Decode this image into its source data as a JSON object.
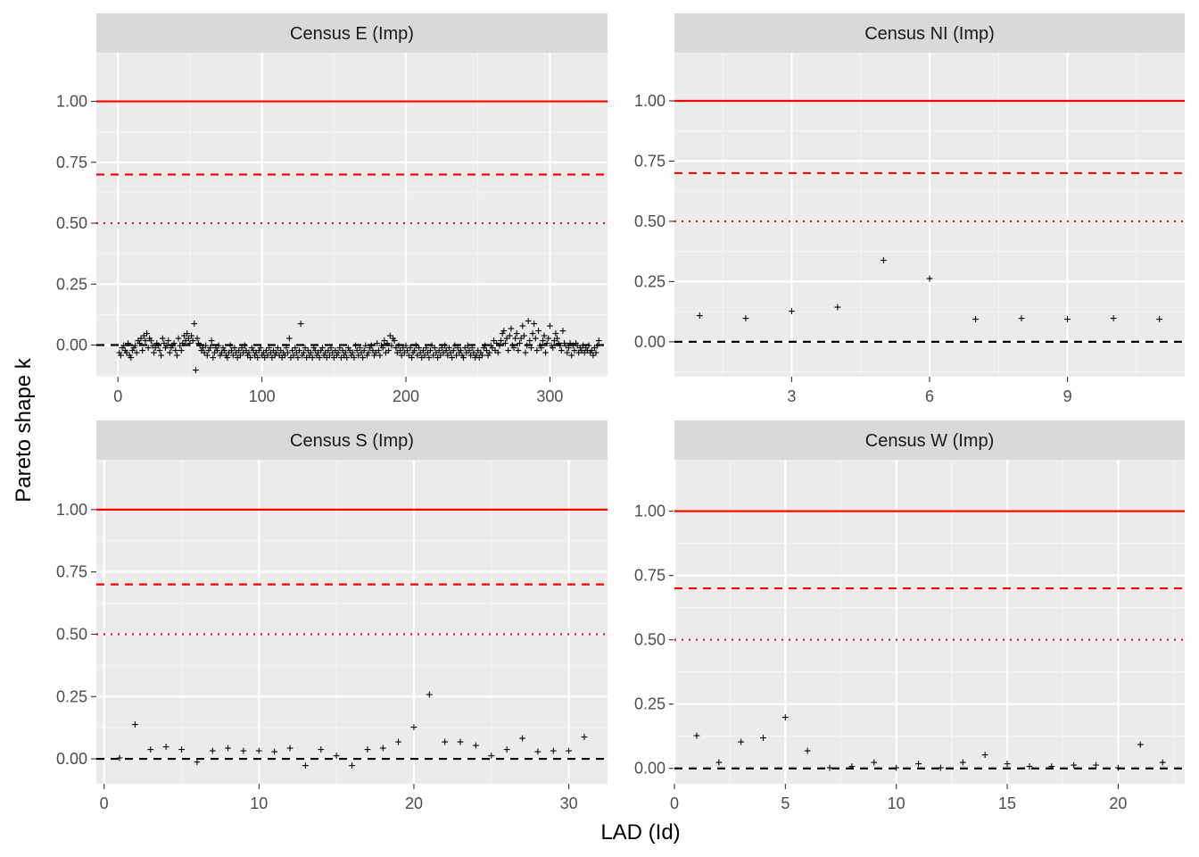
{
  "chart_data": {
    "type": "scatter",
    "xlabel": "LAD (Id)",
    "ylabel": "Pareto shape k",
    "reference_lines": [
      {
        "y": 1.0,
        "color": "#ff0000",
        "style": "solid"
      },
      {
        "y": 0.7,
        "color": "#ff0000",
        "style": "dashed"
      },
      {
        "y": 0.5,
        "color": "#ff0000",
        "style": "dotted"
      },
      {
        "y": 0.0,
        "color": "#000000",
        "style": "dashed"
      }
    ],
    "marker": "+",
    "panels": [
      {
        "title": "Census E (Imp)",
        "xlim": [
          -15,
          340
        ],
        "ylim": [
          -0.13,
          1.2
        ],
        "xticks": [
          0,
          100,
          200,
          300
        ],
        "xtick_labels": [
          "0",
          "100",
          "200",
          "300"
        ],
        "yticks": [
          0.0,
          0.25,
          0.5,
          0.75,
          1.0
        ],
        "ytick_labels": [
          "0.00",
          "0.25",
          "0.50",
          "0.75",
          "1.00"
        ],
        "y": [
          -0.03,
          -0.04,
          -0.01,
          0.0,
          -0.02,
          -0.03,
          0.01,
          -0.04,
          -0.05,
          -0.02,
          -0.01,
          0.0,
          -0.03,
          0.02,
          0.01,
          0.03,
          -0.02,
          0.04,
          0.02,
          0.05,
          -0.01,
          0.03,
          0.02,
          0.0,
          -0.03,
          -0.01,
          0.01,
          0.0,
          -0.02,
          -0.04,
          0.03,
          0.01,
          -0.01,
          0.0,
          0.02,
          -0.03,
          -0.01,
          0.0,
          0.01,
          -0.02,
          -0.04,
          0.03,
          0.0,
          -0.02,
          0.01,
          0.04,
          0.02,
          0.05,
          0.03,
          0.01,
          0.04,
          0.02,
          0.09,
          -0.1,
          0.03,
          0.01,
          0.0,
          -0.02,
          -0.01,
          -0.03,
          0.0,
          -0.04,
          -0.02,
          -0.01,
          0.02,
          -0.05,
          -0.03,
          -0.01,
          -0.02,
          0.0,
          -0.04,
          -0.03,
          -0.01,
          -0.02,
          -0.04,
          -0.05,
          -0.03,
          0.0,
          -0.02,
          -0.04,
          -0.01,
          -0.03,
          -0.05,
          -0.02,
          -0.04,
          -0.01,
          -0.03,
          0.0,
          -0.02,
          -0.04,
          -0.03,
          -0.05,
          -0.01,
          -0.02,
          -0.04,
          -0.03,
          -0.05,
          -0.02,
          -0.01,
          -0.04,
          -0.03,
          -0.05,
          -0.02,
          -0.04,
          -0.01,
          -0.03,
          -0.05,
          -0.02,
          -0.04,
          -0.03,
          -0.01,
          -0.04,
          -0.02,
          -0.05,
          -0.03,
          -0.04,
          -0.01,
          -0.03,
          0.03,
          -0.05,
          -0.02,
          -0.04,
          -0.01,
          -0.03,
          -0.05,
          -0.02,
          0.09,
          -0.04,
          -0.03,
          -0.01,
          -0.05,
          -0.02,
          -0.04,
          -0.03,
          -0.05,
          -0.01,
          -0.02,
          -0.04,
          -0.03,
          -0.05,
          -0.02,
          -0.01,
          -0.04,
          -0.03,
          -0.05,
          -0.02,
          -0.04,
          -0.01,
          -0.03,
          -0.05,
          -0.02,
          -0.04,
          -0.03,
          -0.01,
          -0.05,
          -0.02,
          -0.04,
          -0.03,
          -0.05,
          -0.01,
          -0.02,
          -0.04,
          -0.03,
          -0.05,
          0.0,
          -0.02,
          -0.04,
          -0.01,
          -0.03,
          -0.05,
          -0.02,
          0.0,
          -0.04,
          -0.03,
          -0.01,
          0.0,
          -0.02,
          -0.04,
          -0.03,
          0.01,
          -0.02,
          -0.04,
          0.0,
          -0.01,
          0.02,
          -0.03,
          0.01,
          -0.02,
          0.04,
          0.0,
          0.03,
          0.02,
          -0.01,
          -0.03,
          0.0,
          -0.02,
          -0.04,
          -0.01,
          -0.03,
          0.0,
          -0.02,
          -0.04,
          -0.01,
          -0.05,
          -0.03,
          -0.02,
          0.0,
          -0.04,
          -0.01,
          -0.03,
          -0.05,
          -0.02,
          -0.04,
          -0.01,
          -0.03,
          -0.05,
          -0.02,
          0.0,
          -0.04,
          -0.01,
          -0.03,
          -0.05,
          -0.02,
          -0.04,
          -0.01,
          -0.03,
          0.0,
          -0.02,
          -0.04,
          -0.01,
          -0.03,
          -0.05,
          -0.02,
          0.0,
          -0.04,
          -0.01,
          -0.03,
          -0.02,
          -0.04,
          -0.05,
          -0.01,
          -0.03,
          0.0,
          -0.02,
          -0.04,
          -0.01,
          -0.03,
          -0.05,
          -0.04,
          -0.02,
          -0.05,
          -0.03,
          -0.04,
          -0.01,
          0.0,
          -0.02,
          -0.04,
          -0.03,
          0.0,
          -0.01,
          0.02,
          -0.02,
          0.01,
          -0.03,
          0.0,
          0.02,
          0.05,
          0.06,
          0.01,
          0.03,
          -0.02,
          0.04,
          0.07,
          0.0,
          -0.01,
          0.03,
          0.05,
          -0.02,
          0.01,
          0.03,
          0.08,
          0.04,
          -0.03,
          0.0,
          0.1,
          0.02,
          -0.01,
          0.05,
          0.09,
          0.03,
          -0.02,
          0.06,
          0.0,
          -0.01,
          0.02,
          0.04,
          -0.03,
          0.01,
          0.03,
          0.08,
          0.0,
          -0.01,
          0.02,
          0.05,
          0.03,
          0.01,
          0.0,
          -0.02,
          0.06,
          0.01,
          0.0,
          -0.03,
          -0.01,
          0.01,
          -0.04,
          0.0,
          -0.02,
          0.01,
          0.0,
          -0.03,
          -0.01,
          -0.02,
          0.0,
          -0.03,
          -0.01,
          -0.02,
          0.0,
          -0.03,
          -0.02,
          -0.04,
          -0.01,
          -0.03,
          0.0,
          0.02
        ]
      },
      {
        "title": "Census NI (Imp)",
        "xlim": [
          0.45,
          11.55
        ],
        "ylim": [
          -0.145,
          1.2
        ],
        "xticks": [
          3,
          6,
          9
        ],
        "xtick_labels": [
          "3",
          "6",
          "9"
        ],
        "yticks": [
          0.0,
          0.25,
          0.5,
          0.75,
          1.0
        ],
        "ytick_labels": [
          "0.00",
          "0.25",
          "0.50",
          "0.75",
          "1.00"
        ],
        "x": [
          1,
          2,
          3,
          4,
          5,
          6,
          7,
          8,
          9,
          10,
          11
        ],
        "y": [
          0.11,
          0.1,
          0.13,
          0.145,
          0.34,
          0.265,
          0.095,
          0.1,
          0.095,
          0.1,
          0.095
        ]
      },
      {
        "title": "Census S (Imp)",
        "xlim": [
          -0.5,
          32.5
        ],
        "ylim": [
          -0.1,
          1.2
        ],
        "xticks": [
          0,
          10,
          20,
          30
        ],
        "xtick_labels": [
          "0",
          "10",
          "20",
          "30"
        ],
        "yticks": [
          0.0,
          0.25,
          0.5,
          0.75,
          1.0
        ],
        "ytick_labels": [
          "0.00",
          "0.25",
          "0.50",
          "0.75",
          "1.00"
        ],
        "x": [
          1,
          2,
          3,
          4,
          5,
          6,
          7,
          8,
          9,
          10,
          11,
          12,
          13,
          14,
          15,
          16,
          17,
          18,
          19,
          20,
          21,
          22,
          23,
          24,
          25,
          26,
          27,
          28,
          29,
          30,
          31
        ],
        "y": [
          0.005,
          0.14,
          0.04,
          0.05,
          0.04,
          -0.01,
          0.035,
          0.045,
          0.035,
          0.035,
          0.03,
          0.045,
          -0.025,
          0.04,
          0.015,
          -0.025,
          0.04,
          0.045,
          0.07,
          0.13,
          0.26,
          0.07,
          0.07,
          0.055,
          0.015,
          0.04,
          0.085,
          0.03,
          0.035,
          0.035,
          0.09
        ]
      },
      {
        "title": "Census W (Imp)",
        "xlim": [
          0,
          23
        ],
        "ylim": [
          -0.06,
          1.2
        ],
        "xticks": [
          0,
          5,
          10,
          15,
          20
        ],
        "xtick_labels": [
          "0",
          "5",
          "10",
          "15",
          "20"
        ],
        "yticks": [
          0.0,
          0.25,
          0.5,
          0.75,
          1.0
        ],
        "ytick_labels": [
          "0.00",
          "0.25",
          "0.50",
          "0.75",
          "1.00"
        ],
        "x": [
          1,
          2,
          3,
          4,
          5,
          6,
          7,
          8,
          9,
          10,
          11,
          12,
          13,
          14,
          15,
          16,
          17,
          18,
          19,
          20,
          21,
          22
        ],
        "y": [
          0.13,
          0.025,
          0.105,
          0.12,
          0.2,
          0.07,
          0.005,
          0.01,
          0.025,
          0.005,
          0.02,
          0.005,
          0.025,
          0.055,
          0.02,
          0.01,
          0.01,
          0.015,
          0.015,
          0.005,
          0.095,
          0.025
        ]
      }
    ]
  }
}
